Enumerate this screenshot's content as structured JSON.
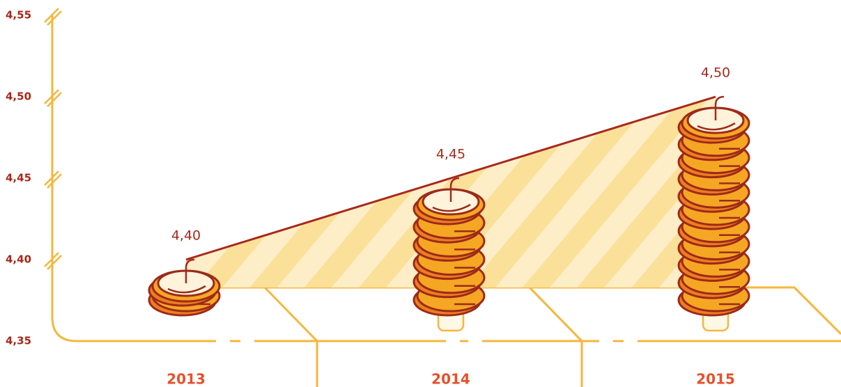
{
  "chart_data": {
    "type": "coin-stack",
    "categories": [
      "2013",
      "2014",
      "2015"
    ],
    "values": [
      4.4,
      4.45,
      4.5
    ],
    "value_labels": [
      "4,40",
      "4,45",
      "4,50"
    ],
    "ylim": [
      4.35,
      4.55
    ],
    "yticks": [
      {
        "value": 4.35,
        "label": "4,35"
      },
      {
        "value": 4.4,
        "label": "4,40"
      },
      {
        "value": 4.45,
        "label": "4,45"
      },
      {
        "value": 4.5,
        "label": "4,50"
      },
      {
        "value": 4.55,
        "label": "4,55"
      }
    ],
    "color": "#f5a623"
  }
}
